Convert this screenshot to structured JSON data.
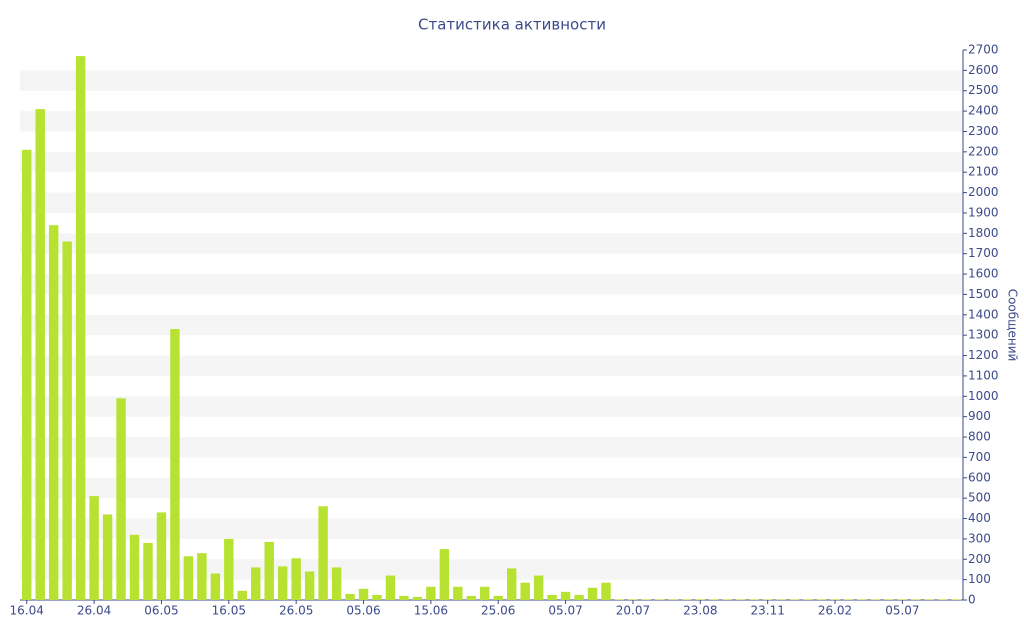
{
  "chart_data": {
    "type": "bar",
    "title": "Статистика активности",
    "y_label": "Сообщений",
    "categories": [
      "16.04",
      null,
      null,
      null,
      null,
      "26.04",
      null,
      null,
      null,
      null,
      "06.05",
      null,
      null,
      null,
      null,
      "16.05",
      null,
      null,
      null,
      null,
      "26.05",
      null,
      null,
      null,
      null,
      "05.06",
      null,
      null,
      null,
      null,
      "15.06",
      null,
      null,
      null,
      null,
      "25.06",
      null,
      null,
      null,
      null,
      "05.07",
      null,
      null,
      null,
      null,
      "20.07",
      null,
      null,
      null,
      null,
      "23.08",
      null,
      null,
      null,
      null,
      "23.11",
      null,
      null,
      null,
      null,
      "26.02",
      null,
      null,
      null,
      null,
      "05.07",
      null,
      null,
      null,
      null
    ],
    "values": [
      2210,
      2410,
      1840,
      1760,
      2670,
      510,
      420,
      990,
      320,
      280,
      430,
      1330,
      215,
      230,
      130,
      300,
      45,
      160,
      285,
      165,
      205,
      140,
      460,
      160,
      30,
      55,
      25,
      120,
      20,
      15,
      65,
      250,
      65,
      20,
      65,
      20,
      155,
      85,
      120,
      25,
      40,
      25,
      60,
      85,
      3,
      3,
      3,
      3,
      3,
      3,
      3,
      3,
      3,
      3,
      3,
      3,
      3,
      3,
      3,
      3,
      3,
      3,
      3,
      3,
      3,
      3,
      3,
      3,
      3,
      3
    ],
    "color": "#b8e232",
    "ylim": [
      0,
      2700
    ],
    "yticks": [
      0,
      100,
      200,
      300,
      400,
      500,
      600,
      700,
      800,
      900,
      1000,
      1100,
      1200,
      1300,
      1400,
      1500,
      1600,
      1700,
      1800,
      1900,
      2000,
      2100,
      2200,
      2300,
      2400,
      2500,
      2600,
      2700
    ],
    "grid": true
  }
}
